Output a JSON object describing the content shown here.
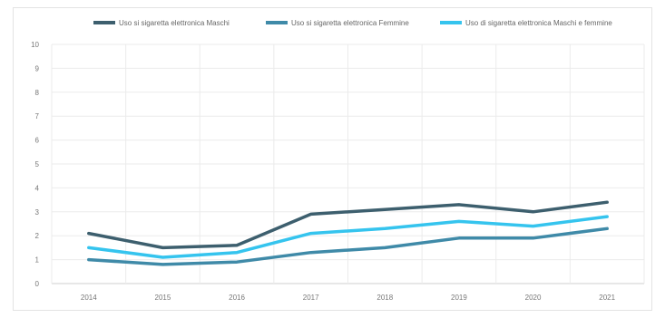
{
  "chart_data": {
    "type": "line",
    "title": "",
    "xlabel": "",
    "ylabel": "",
    "categories": [
      "2014",
      "2015",
      "2016",
      "2017",
      "2018",
      "2019",
      "2020",
      "2021"
    ],
    "ylim": [
      0,
      10
    ],
    "yticks": [
      "0",
      "1",
      "2",
      "3",
      "4",
      "5",
      "6",
      "7",
      "8",
      "9",
      "10"
    ],
    "grid": true,
    "legend_position": "top",
    "series": [
      {
        "name": "Uso si sigaretta elettronica Maschi",
        "color": "#3d5f6e",
        "values": [
          2.1,
          1.5,
          1.6,
          2.9,
          3.1,
          3.3,
          3.0,
          3.4
        ]
      },
      {
        "name": "Uso si sigaretta elettronica Femmine",
        "color": "#3f8aa8",
        "values": [
          1.0,
          0.8,
          0.9,
          1.3,
          1.5,
          1.9,
          1.9,
          2.3
        ]
      },
      {
        "name": "Uso di sigaretta elettronica Maschi e femmine",
        "color": "#35c4ee",
        "values": [
          1.5,
          1.1,
          1.3,
          2.1,
          2.3,
          2.6,
          2.4,
          2.8
        ]
      }
    ]
  }
}
